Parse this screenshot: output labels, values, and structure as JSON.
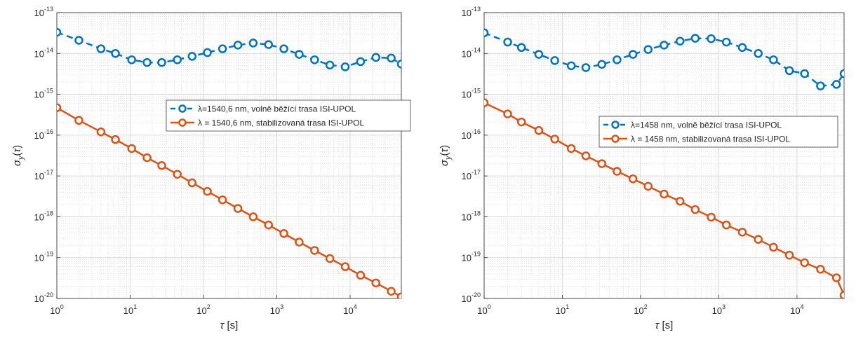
{
  "colors": {
    "series_blue": "#0072BD",
    "series_orange": "#D95319",
    "grid": "#cfcfcf",
    "axis": "#262626"
  },
  "chart_data": [
    {
      "type": "line",
      "xscale": "log",
      "yscale": "log",
      "xlim": [
        1,
        50000
      ],
      "ylim": [
        1e-20,
        1e-13
      ],
      "xlabel": "τ [s]",
      "ylabel": "σy(τ)",
      "grid": true,
      "legend_position": "right-middle",
      "series": [
        {
          "name": "λ=1540,6 nm, volně běžící trasa ISI-UPOL",
          "style": "dashed-circle",
          "color": "#0072BD",
          "points": [
            [
              1,
              3.3e-14
            ],
            [
              2,
              2.1e-14
            ],
            [
              4,
              1.3e-14
            ],
            [
              6.3,
              1e-14
            ],
            [
              10.5,
              7e-15
            ],
            [
              17,
              6e-15
            ],
            [
              27,
              6e-15
            ],
            [
              44,
              7e-15
            ],
            [
              70,
              8.5e-15
            ],
            [
              113,
              1.05e-14
            ],
            [
              182,
              1.3e-14
            ],
            [
              295,
              1.6e-14
            ],
            [
              477,
              1.8e-14
            ],
            [
              772,
              1.65e-14
            ],
            [
              1250,
              1.3e-14
            ],
            [
              2020,
              9.5e-15
            ],
            [
              3280,
              7e-15
            ],
            [
              5300,
              5.2e-15
            ],
            [
              8580,
              4.7e-15
            ],
            [
              13900,
              6.3e-15
            ],
            [
              22500,
              8e-15
            ],
            [
              36400,
              7.7e-15
            ],
            [
              50000,
              5.5e-15
            ]
          ]
        },
        {
          "name": "λ = 1540,6 nm, stabilizovaná trasa ISI-UPOL",
          "style": "solid-circle",
          "color": "#D95319",
          "points": [
            [
              1,
              4.7e-16
            ],
            [
              2,
              2.3e-16
            ],
            [
              4,
              1.2e-16
            ],
            [
              6.3,
              7.8e-17
            ],
            [
              10.5,
              4.7e-17
            ],
            [
              17,
              2.8e-17
            ],
            [
              27,
              1.8e-17
            ],
            [
              44,
              1.1e-17
            ],
            [
              70,
              6.8e-18
            ],
            [
              113,
              4.2e-18
            ],
            [
              182,
              2.6e-18
            ],
            [
              295,
              1.6e-18
            ],
            [
              477,
              1e-18
            ],
            [
              772,
              6.3e-19
            ],
            [
              1250,
              3.9e-19
            ],
            [
              2020,
              2.4e-19
            ],
            [
              3280,
              1.5e-19
            ],
            [
              5300,
              9.5e-20
            ],
            [
              8580,
              6e-20
            ],
            [
              13900,
              3.7e-20
            ],
            [
              22500,
              2.4e-20
            ],
            [
              36400,
              1.5e-20
            ],
            [
              50000,
              1.1e-20
            ]
          ]
        }
      ]
    },
    {
      "type": "line",
      "xscale": "log",
      "yscale": "log",
      "xlim": [
        1,
        40000
      ],
      "ylim": [
        1e-20,
        1e-13
      ],
      "xlabel": "τ [s]",
      "ylabel": "σy(τ)",
      "grid": true,
      "legend_position": "right-middle",
      "series": [
        {
          "name": "λ=1458 nm, volně běžící trasa ISI-UPOL",
          "style": "dashed-circle",
          "color": "#0072BD",
          "points": [
            [
              1,
              3.2e-14
            ],
            [
              2,
              1.9e-14
            ],
            [
              3,
              1.4e-14
            ],
            [
              5,
              9.5e-15
            ],
            [
              8,
              6.7e-15
            ],
            [
              13,
              5e-15
            ],
            [
              20,
              4.5e-15
            ],
            [
              32,
              5.4e-15
            ],
            [
              50,
              7e-15
            ],
            [
              80,
              9.5e-15
            ],
            [
              125,
              1.25e-14
            ],
            [
              200,
              1.6e-14
            ],
            [
              320,
              2e-14
            ],
            [
              500,
              2.35e-14
            ],
            [
              800,
              2.3e-14
            ],
            [
              1250,
              1.9e-14
            ],
            [
              2000,
              1.4e-14
            ],
            [
              3200,
              1e-14
            ],
            [
              5000,
              7e-15
            ],
            [
              8000,
              3.8e-15
            ],
            [
              12500,
              3.2e-15
            ],
            [
              20000,
              1.6e-15
            ],
            [
              32000,
              1.75e-15
            ],
            [
              40000,
              3.2e-15
            ]
          ]
        },
        {
          "name": "λ = 1458 nm, stabilizovaná trasa ISI-UPOL",
          "style": "solid-circle",
          "color": "#D95319",
          "points": [
            [
              1,
              6.2e-16
            ],
            [
              2,
              3.3e-16
            ],
            [
              3,
              2.1e-16
            ],
            [
              5,
              1.3e-16
            ],
            [
              8,
              8e-17
            ],
            [
              13,
              4.7e-17
            ],
            [
              20,
              3.1e-17
            ],
            [
              32,
              2e-17
            ],
            [
              50,
              1.3e-17
            ],
            [
              80,
              8.5e-18
            ],
            [
              125,
              5.6e-18
            ],
            [
              200,
              3.6e-18
            ],
            [
              320,
              2.4e-18
            ],
            [
              500,
              1.5e-18
            ],
            [
              800,
              9.8e-19
            ],
            [
              1250,
              6.3e-19
            ],
            [
              2000,
              4.2e-19
            ],
            [
              3200,
              2.8e-19
            ],
            [
              5000,
              1.8e-19
            ],
            [
              8000,
              1.15e-19
            ],
            [
              12500,
              7.5e-20
            ],
            [
              20000,
              5.2e-20
            ],
            [
              32000,
              3.2e-20
            ],
            [
              40000,
              1.2e-20
            ]
          ]
        }
      ]
    }
  ]
}
